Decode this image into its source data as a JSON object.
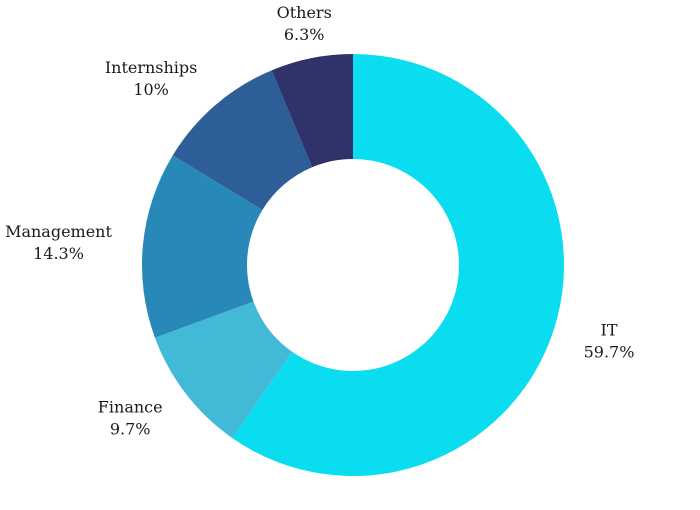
{
  "chart_data": {
    "type": "pie",
    "variant": "donut",
    "title": "",
    "legend": "none",
    "categories": [
      "IT",
      "Finance",
      "Management",
      "Internships",
      "Others"
    ],
    "values": [
      59.7,
      9.7,
      14.3,
      10,
      6.3
    ],
    "value_labels": [
      "59.7%",
      "9.7%",
      "14.3%",
      "10%",
      "6.3%"
    ],
    "colors": [
      "#0ADDEF",
      "#42B9D6",
      "#2889B8",
      "#2D5E97",
      "#2F336A"
    ],
    "start_angle_deg": 0,
    "direction": "clockwise"
  }
}
